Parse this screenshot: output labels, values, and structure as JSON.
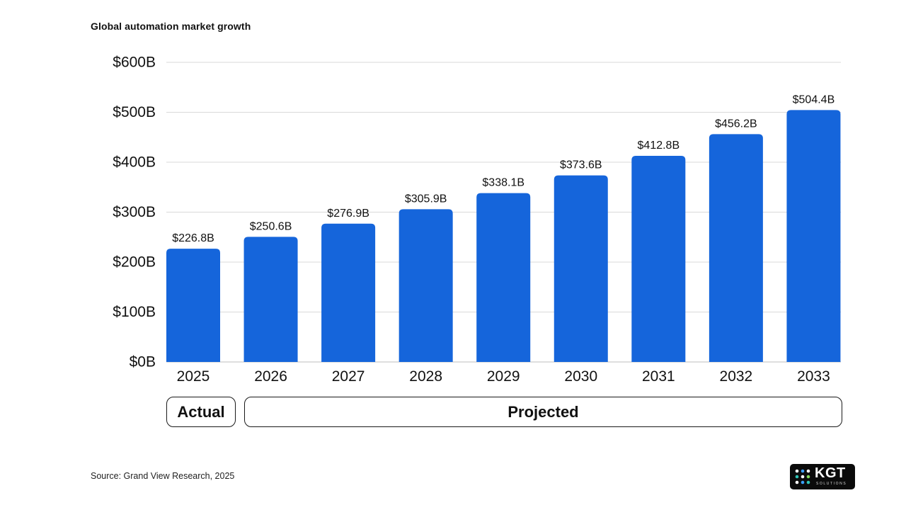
{
  "title": "Global automation market growth",
  "source": "Source: Grand View Research, 2025",
  "segments": {
    "actual": "Actual",
    "projected": "Projected"
  },
  "logo": {
    "name": "KGT",
    "tagline": "SOLUTIONS",
    "icon": "dot-grid-logo-icon"
  },
  "colors": {
    "bar": "#1565DB",
    "grid": "#D9D9D9",
    "text": "#111111"
  },
  "chart_data": {
    "type": "bar",
    "title": "Global automation market growth",
    "xlabel": "",
    "ylabel": "",
    "categories": [
      "2025",
      "2026",
      "2027",
      "2028",
      "2029",
      "2030",
      "2031",
      "2032",
      "2033"
    ],
    "values": [
      226.8,
      250.6,
      276.9,
      305.9,
      338.1,
      373.6,
      412.8,
      456.2,
      504.4
    ],
    "data_labels": [
      "$226.8B",
      "$250.6B",
      "$276.9B",
      "$305.9B",
      "$338.1B",
      "$373.6B",
      "$412.8B",
      "$456.2B",
      "$504.4B"
    ],
    "ylim": [
      0,
      600
    ],
    "yticks": [
      0,
      100,
      200,
      300,
      400,
      500,
      600
    ],
    "ytick_labels": [
      "$0B",
      "$100B",
      "$200B",
      "$300B",
      "$400B",
      "$500B",
      "$600B"
    ],
    "grid": true,
    "legend": "none"
  }
}
